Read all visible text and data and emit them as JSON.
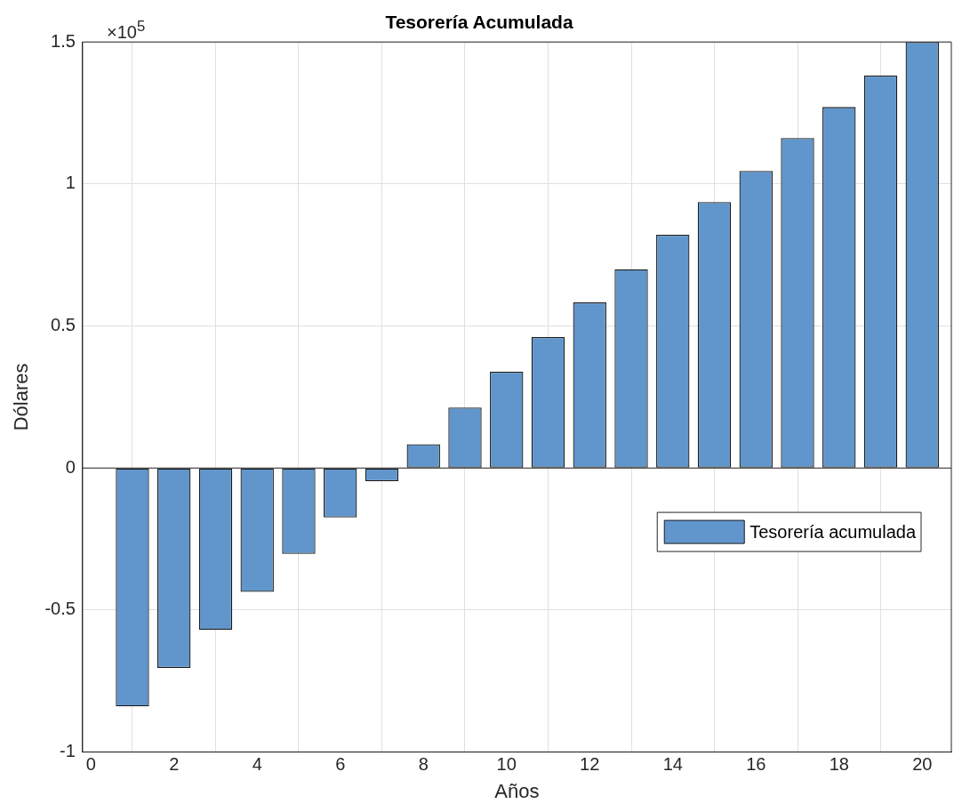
{
  "chart_data": {
    "type": "bar",
    "title": "Tesorería Acumulada",
    "xlabel": "Años",
    "ylabel": "Dólares",
    "x": [
      1,
      2,
      3,
      4,
      5,
      6,
      7,
      8,
      9,
      10,
      11,
      12,
      13,
      14,
      15,
      16,
      17,
      18,
      19,
      20
    ],
    "series": [
      {
        "name": "Tesorería acumulada",
        "color": "#6096cc",
        "values": [
          -0.839,
          -0.704,
          -0.57,
          -0.436,
          -0.302,
          -0.174,
          -0.046,
          0.084,
          0.213,
          0.339,
          0.461,
          0.583,
          0.7,
          0.821,
          0.936,
          1.046,
          1.162,
          1.271,
          1.382,
          1.5
        ]
      }
    ],
    "xlim": [
      -0.2,
      20.7
    ],
    "xticks": [
      0,
      2,
      4,
      6,
      8,
      10,
      12,
      14,
      16,
      18,
      20
    ],
    "ylim": [
      -1,
      1.5
    ],
    "yticks": [
      -1,
      -0.5,
      0,
      0.5,
      1,
      1.5
    ],
    "annotations": [
      "×10$^{5}$"
    ],
    "grid": true,
    "legend": "right"
  }
}
